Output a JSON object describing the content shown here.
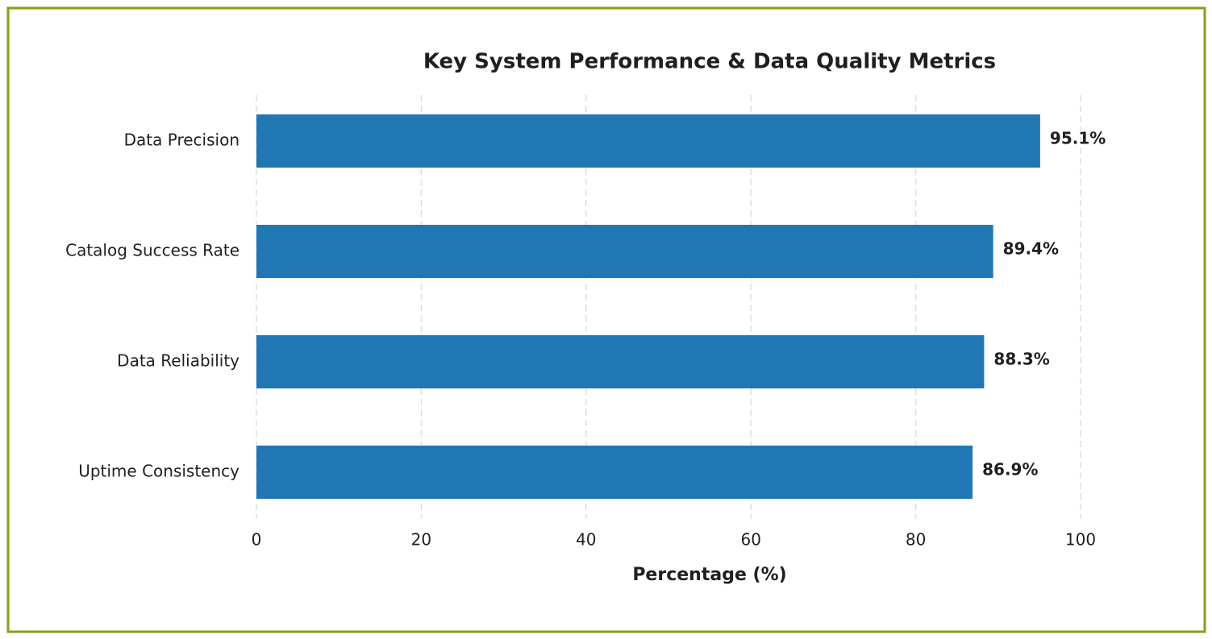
{
  "chart_data": {
    "type": "bar",
    "orientation": "horizontal",
    "title": "Key System Performance & Data Quality Metrics",
    "x_label": "Percentage (%)",
    "categories": [
      "Data Precision",
      "Catalog Success Rate",
      "Data Reliability",
      "Uptime Consistency"
    ],
    "values": [
      95.1,
      89.4,
      88.3,
      86.9
    ],
    "value_labels": [
      "95.1%",
      "89.4%",
      "88.3%",
      "86.9%"
    ],
    "color": "#2077b4",
    "xlim": [
      0,
      100
    ],
    "xticks": [
      0,
      20,
      40,
      60,
      80,
      100
    ],
    "grid": true
  }
}
